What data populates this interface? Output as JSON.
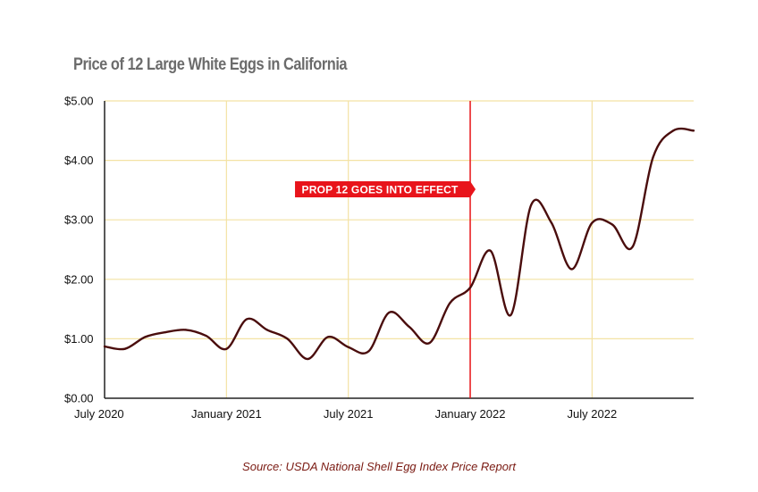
{
  "chart_data": {
    "type": "line",
    "title": "Price of 12 Large White Eggs in California",
    "source": "Source: USDA National Shell Egg Index Price Report",
    "xlabel": "",
    "ylabel": "",
    "x_ticks": [
      "July 2020",
      "January 2021",
      "July 2021",
      "January 2022",
      "July 2022"
    ],
    "y_ticks": [
      "$0.00",
      "$1.00",
      "$2.00",
      "$3.00",
      "$4.00",
      "$5.00"
    ],
    "ylim": [
      0,
      5
    ],
    "xlim": [
      "2020-07",
      "2022-12"
    ],
    "grid": true,
    "colors": {
      "line": "#4a0d0d",
      "grid": "#f3e2a4",
      "axis": "#222222",
      "annotation": "#e8141b"
    },
    "annotation": {
      "label": "PROP 12 GOES INTO EFFECT",
      "x": "2022-01"
    },
    "series": [
      {
        "x": [
          "2020-07",
          "2020-08",
          "2020-09",
          "2020-10",
          "2020-11",
          "2020-12",
          "2021-01",
          "2021-02",
          "2021-03",
          "2021-04",
          "2021-05",
          "2021-06",
          "2021-07",
          "2021-08",
          "2021-09",
          "2021-10",
          "2021-11",
          "2021-12",
          "2022-01",
          "2022-02",
          "2022-03",
          "2022-04",
          "2022-05",
          "2022-06",
          "2022-07",
          "2022-08",
          "2022-09",
          "2022-10",
          "2022-11",
          "2022-12"
        ],
        "values": [
          0.87,
          0.83,
          1.03,
          1.11,
          1.15,
          1.05,
          0.83,
          1.33,
          1.15,
          1.0,
          0.66,
          1.03,
          0.86,
          0.79,
          1.44,
          1.2,
          0.93,
          1.6,
          1.86,
          2.48,
          1.4,
          3.25,
          2.95,
          2.17,
          2.95,
          2.92,
          2.55,
          4.05,
          4.5,
          4.5
        ]
      }
    ]
  }
}
